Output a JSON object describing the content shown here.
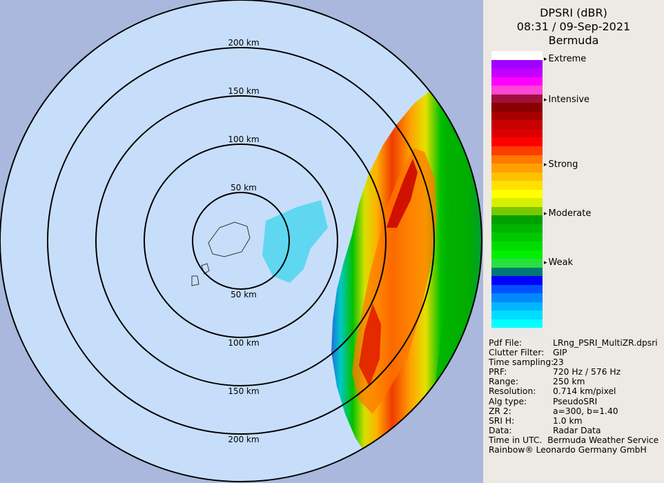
{
  "panel": {
    "title_line1": "DPSRI (dBR)",
    "title_line2": "08:31 / 09-Sep-2021",
    "title_line3": "Bermuda"
  },
  "legend": {
    "levels": [
      "Extreme",
      "Intensive",
      "Strong",
      "Moderate",
      "Weak"
    ],
    "colors": [
      "#ffffff",
      "#a000ff",
      "#c400ff",
      "#ff00ff",
      "#ff44d8",
      "#a0103c",
      "#8a0000",
      "#a80000",
      "#c80000",
      "#dc0000",
      "#ff0000",
      "#ff3c00",
      "#ff7800",
      "#ffa000",
      "#ffc000",
      "#ffe000",
      "#ffff00",
      "#d8f000",
      "#7ac800",
      "#00a000",
      "#00b400",
      "#00c800",
      "#00dc00",
      "#00f000",
      "#28e040",
      "#007878",
      "#0000ff",
      "#0050ff",
      "#0088ff",
      "#00b4ff",
      "#00dcff",
      "#00ffff",
      "#e8e8e8"
    ]
  },
  "map": {
    "range_labels_north": [
      "50 km",
      "100 km",
      "150 km",
      "200 km"
    ],
    "range_labels_south": [
      "50 km",
      "100 km",
      "150 km",
      "200 km"
    ]
  },
  "info": {
    "rows": [
      {
        "k": "Pdf File:",
        "v": "LRng_PSRI_MultiZR.dpsri"
      },
      {
        "k": "Clutter Filter:",
        "v": "GIP"
      },
      {
        "k": "Time sampling:",
        "v": "23"
      },
      {
        "k": "PRF:",
        "v": "720 Hz / 576 Hz"
      },
      {
        "k": "Range:",
        "v": "250 km"
      },
      {
        "k": "Resolution:",
        "v": "0.714 km/pixel"
      },
      {
        "k": "Alg type:",
        "v": "PseudoSRI"
      },
      {
        "k": "ZR 2:",
        "v": "a=300, b=1.40"
      },
      {
        "k": "SRI H:",
        "v": "1.0 km"
      },
      {
        "k": "Data:",
        "v": "Radar Data"
      }
    ],
    "footer_left": "Time in UTC.",
    "footer_right": "Bermuda Weather Service",
    "footer_line2": "Rainbow® Leonardo Germany GmbH"
  }
}
